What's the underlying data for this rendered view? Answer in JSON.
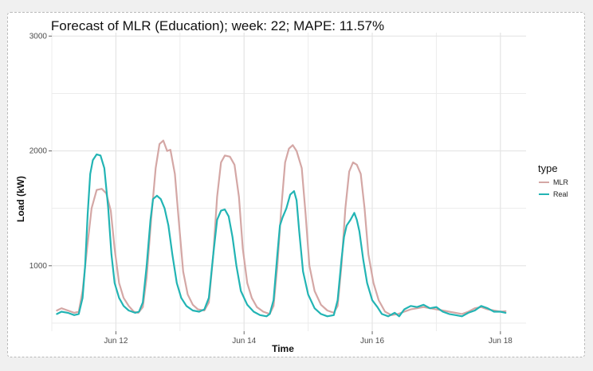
{
  "colors": {
    "mlr": "#d4a7a5",
    "real": "#22b4b4",
    "grid": "#ececec"
  },
  "chart_data": {
    "type": "line",
    "title": "Forecast of MLR (Education); week: 22; MAPE: 11.57%",
    "xlabel": "Time",
    "ylabel": "Load (kW)",
    "xlim": [
      11.0,
      18.4
    ],
    "ylim": [
      430,
      3030
    ],
    "x_ticks": [
      {
        "value": 12,
        "label": "Jun 12"
      },
      {
        "value": 14,
        "label": "Jun 14"
      },
      {
        "value": 16,
        "label": "Jun 16"
      },
      {
        "value": 18,
        "label": "Jun 18"
      }
    ],
    "y_ticks": [
      {
        "value": 1000,
        "label": "1000"
      },
      {
        "value": 2000,
        "label": "2000"
      },
      {
        "value": 3000,
        "label": "3000"
      }
    ],
    "grid": true,
    "legend": {
      "title": "type",
      "position": "right"
    },
    "series": [
      {
        "name": "MLR",
        "points": [
          [
            11.08,
            610
          ],
          [
            11.15,
            630
          ],
          [
            11.25,
            610
          ],
          [
            11.35,
            590
          ],
          [
            11.42,
            600
          ],
          [
            11.48,
            780
          ],
          [
            11.55,
            1150
          ],
          [
            11.62,
            1500
          ],
          [
            11.7,
            1660
          ],
          [
            11.78,
            1670
          ],
          [
            11.85,
            1630
          ],
          [
            11.92,
            1480
          ],
          [
            11.98,
            1150
          ],
          [
            12.05,
            850
          ],
          [
            12.12,
            720
          ],
          [
            12.2,
            650
          ],
          [
            12.28,
            600
          ],
          [
            12.35,
            590
          ],
          [
            12.42,
            640
          ],
          [
            12.48,
            900
          ],
          [
            12.55,
            1400
          ],
          [
            12.62,
            1850
          ],
          [
            12.68,
            2060
          ],
          [
            12.74,
            2090
          ],
          [
            12.8,
            2000
          ],
          [
            12.85,
            2010
          ],
          [
            12.92,
            1800
          ],
          [
            12.98,
            1400
          ],
          [
            13.05,
            950
          ],
          [
            13.12,
            750
          ],
          [
            13.2,
            660
          ],
          [
            13.28,
            620
          ],
          [
            13.38,
            610
          ],
          [
            13.45,
            680
          ],
          [
            13.52,
            1100
          ],
          [
            13.58,
            1600
          ],
          [
            13.64,
            1900
          ],
          [
            13.7,
            1960
          ],
          [
            13.78,
            1950
          ],
          [
            13.85,
            1880
          ],
          [
            13.92,
            1600
          ],
          [
            13.98,
            1150
          ],
          [
            14.05,
            850
          ],
          [
            14.12,
            720
          ],
          [
            14.2,
            640
          ],
          [
            14.3,
            600
          ],
          [
            14.4,
            580
          ],
          [
            14.46,
            650
          ],
          [
            14.52,
            1000
          ],
          [
            14.58,
            1500
          ],
          [
            14.64,
            1900
          ],
          [
            14.7,
            2020
          ],
          [
            14.76,
            2050
          ],
          [
            14.82,
            2000
          ],
          [
            14.9,
            1850
          ],
          [
            14.96,
            1450
          ],
          [
            15.02,
            1000
          ],
          [
            15.1,
            780
          ],
          [
            15.2,
            660
          ],
          [
            15.3,
            610
          ],
          [
            15.4,
            590
          ],
          [
            15.46,
            650
          ],
          [
            15.52,
            1000
          ],
          [
            15.58,
            1500
          ],
          [
            15.64,
            1820
          ],
          [
            15.7,
            1900
          ],
          [
            15.76,
            1880
          ],
          [
            15.82,
            1800
          ],
          [
            15.88,
            1500
          ],
          [
            15.94,
            1100
          ],
          [
            16.02,
            850
          ],
          [
            16.1,
            700
          ],
          [
            16.2,
            600
          ],
          [
            16.3,
            570
          ],
          [
            16.4,
            580
          ],
          [
            16.5,
            600
          ],
          [
            16.6,
            620
          ],
          [
            16.7,
            630
          ],
          [
            16.8,
            640
          ],
          [
            16.9,
            630
          ],
          [
            17.0,
            620
          ],
          [
            17.1,
            610
          ],
          [
            17.2,
            600
          ],
          [
            17.3,
            590
          ],
          [
            17.4,
            580
          ],
          [
            17.5,
            600
          ],
          [
            17.6,
            630
          ],
          [
            17.7,
            640
          ],
          [
            17.8,
            620
          ],
          [
            17.9,
            610
          ],
          [
            18.0,
            600
          ],
          [
            18.08,
            605
          ]
        ]
      },
      {
        "name": "Real",
        "points": [
          [
            11.08,
            580
          ],
          [
            11.15,
            600
          ],
          [
            11.25,
            590
          ],
          [
            11.35,
            570
          ],
          [
            11.42,
            580
          ],
          [
            11.48,
            720
          ],
          [
            11.52,
            1000
          ],
          [
            11.56,
            1450
          ],
          [
            11.6,
            1800
          ],
          [
            11.64,
            1920
          ],
          [
            11.7,
            1970
          ],
          [
            11.76,
            1960
          ],
          [
            11.82,
            1850
          ],
          [
            11.88,
            1500
          ],
          [
            11.93,
            1100
          ],
          [
            11.98,
            850
          ],
          [
            12.05,
            720
          ],
          [
            12.12,
            650
          ],
          [
            12.2,
            610
          ],
          [
            12.3,
            590
          ],
          [
            12.36,
            600
          ],
          [
            12.42,
            680
          ],
          [
            12.48,
            1000
          ],
          [
            12.54,
            1400
          ],
          [
            12.58,
            1580
          ],
          [
            12.64,
            1610
          ],
          [
            12.7,
            1580
          ],
          [
            12.76,
            1500
          ],
          [
            12.82,
            1350
          ],
          [
            12.88,
            1100
          ],
          [
            12.95,
            850
          ],
          [
            13.02,
            720
          ],
          [
            13.1,
            650
          ],
          [
            13.2,
            610
          ],
          [
            13.3,
            600
          ],
          [
            13.38,
            620
          ],
          [
            13.45,
            720
          ],
          [
            13.52,
            1100
          ],
          [
            13.58,
            1400
          ],
          [
            13.64,
            1480
          ],
          [
            13.7,
            1490
          ],
          [
            13.76,
            1430
          ],
          [
            13.82,
            1250
          ],
          [
            13.88,
            1000
          ],
          [
            13.95,
            780
          ],
          [
            14.05,
            660
          ],
          [
            14.15,
            600
          ],
          [
            14.25,
            570
          ],
          [
            14.35,
            560
          ],
          [
            14.4,
            580
          ],
          [
            14.46,
            700
          ],
          [
            14.52,
            1100
          ],
          [
            14.56,
            1350
          ],
          [
            14.6,
            1420
          ],
          [
            14.66,
            1500
          ],
          [
            14.72,
            1620
          ],
          [
            14.78,
            1650
          ],
          [
            14.82,
            1570
          ],
          [
            14.86,
            1300
          ],
          [
            14.92,
            950
          ],
          [
            15.0,
            750
          ],
          [
            15.1,
            630
          ],
          [
            15.2,
            580
          ],
          [
            15.3,
            560
          ],
          [
            15.4,
            570
          ],
          [
            15.46,
            700
          ],
          [
            15.52,
            1050
          ],
          [
            15.56,
            1250
          ],
          [
            15.6,
            1350
          ],
          [
            15.66,
            1400
          ],
          [
            15.72,
            1460
          ],
          [
            15.76,
            1400
          ],
          [
            15.8,
            1300
          ],
          [
            15.86,
            1050
          ],
          [
            15.92,
            850
          ],
          [
            16.0,
            700
          ],
          [
            16.08,
            640
          ],
          [
            16.15,
            580
          ],
          [
            16.25,
            560
          ],
          [
            16.35,
            590
          ],
          [
            16.42,
            560
          ],
          [
            16.5,
            620
          ],
          [
            16.6,
            650
          ],
          [
            16.7,
            640
          ],
          [
            16.8,
            660
          ],
          [
            16.9,
            630
          ],
          [
            17.0,
            640
          ],
          [
            17.1,
            600
          ],
          [
            17.2,
            580
          ],
          [
            17.3,
            570
          ],
          [
            17.4,
            560
          ],
          [
            17.5,
            590
          ],
          [
            17.6,
            610
          ],
          [
            17.7,
            650
          ],
          [
            17.8,
            630
          ],
          [
            17.9,
            600
          ],
          [
            18.0,
            600
          ],
          [
            18.08,
            590
          ]
        ]
      }
    ]
  }
}
